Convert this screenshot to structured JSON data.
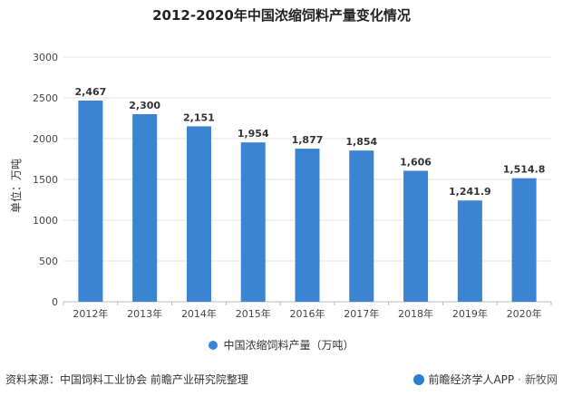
{
  "chart_data": {
    "type": "bar",
    "title": "2012-2020年中国浓缩饲料产量变化情况",
    "ylabel": "单位：万吨",
    "categories": [
      "2012年",
      "2013年",
      "2014年",
      "2015年",
      "2016年",
      "2017年",
      "2018年",
      "2019年",
      "2020年"
    ],
    "values": [
      2467,
      2300,
      2151,
      1954,
      1877,
      1854,
      1606,
      1241.9,
      1514.8
    ],
    "value_labels": [
      "2,467",
      "2,300",
      "2,151",
      "1,954",
      "1,877",
      "1,854",
      "1,606",
      "1,241.9",
      "1,514.8"
    ],
    "yticks": [
      "0",
      "500",
      "1000",
      "1500",
      "2000",
      "2500",
      "3000"
    ],
    "ylim": [
      0,
      3000
    ],
    "grid": "horizontal",
    "legend": {
      "position": "bottom",
      "entries": [
        "中国浓缩饲料产量（万吨）"
      ]
    },
    "bar_color": "#3b84d2"
  },
  "footer": {
    "source": "资料来源：中国饲料工业协会 前瞻产业研究院整理",
    "brand_one": "前瞻经济学人APP",
    "brand_two": "新牧网"
  }
}
